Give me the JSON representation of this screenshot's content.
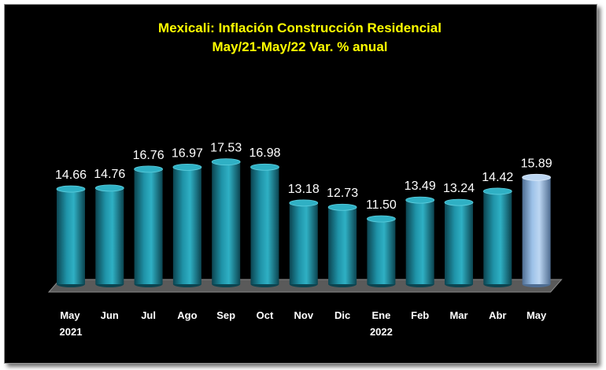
{
  "chart_data": {
    "type": "bar",
    "title": "Mexicali: Inflación Construcción Residencial",
    "subtitle": "May/21-May/22 Var. % anual",
    "categories": [
      [
        "May",
        "2021"
      ],
      [
        "Jun",
        ""
      ],
      [
        "Jul",
        ""
      ],
      [
        "Ago",
        ""
      ],
      [
        "Sep",
        ""
      ],
      [
        "Oct",
        ""
      ],
      [
        "Nov",
        ""
      ],
      [
        "Dic",
        ""
      ],
      [
        "Ene",
        "2022"
      ],
      [
        "Feb",
        ""
      ],
      [
        "Mar",
        ""
      ],
      [
        "Abr",
        ""
      ],
      [
        "May",
        ""
      ]
    ],
    "values": [
      14.66,
      14.76,
      16.76,
      16.97,
      17.53,
      16.98,
      13.18,
      12.73,
      11.5,
      13.49,
      13.24,
      14.42,
      15.89
    ],
    "value_labels": [
      "14.66",
      "14.76",
      "16.76",
      "16.97",
      "17.53",
      "16.98",
      "13.18",
      "12.73",
      "11.50",
      "13.49",
      "13.24",
      "14.42",
      "15.89"
    ],
    "highlight_index": 12,
    "xlabel": "",
    "ylabel": "",
    "ylim": [
      0,
      20
    ],
    "grid": false,
    "legend": "none",
    "colors": {
      "bar": "#1f93a8",
      "bar_dark": "#0c4450",
      "bar_top": "#2fb0c4",
      "highlight": "#9cc1e8",
      "highlight_dark": "#4f6d92",
      "highlight_top": "#bcd6f2",
      "floor": "#5a5a5a",
      "background": "#000000",
      "title": "#ffff00",
      "labels": "#ffffff"
    }
  }
}
